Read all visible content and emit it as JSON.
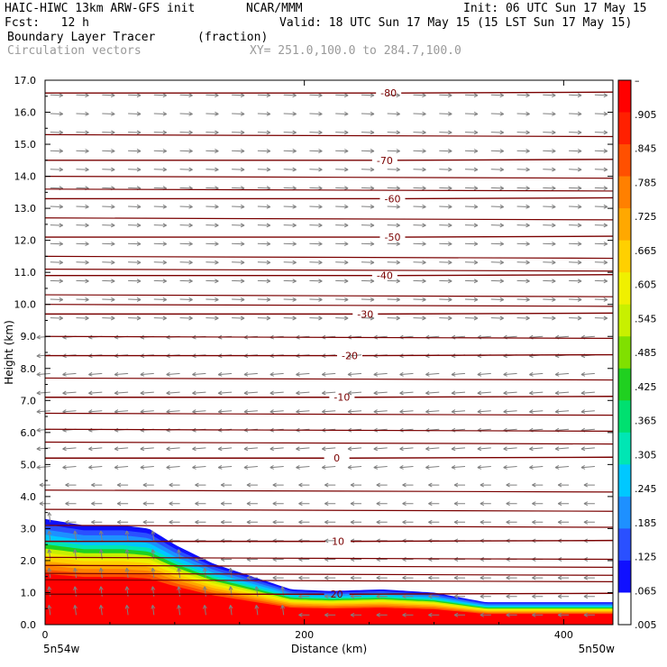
{
  "header": {
    "line1_left": "HAIC-HIWC 13km ARW-GFS init",
    "line1_mid": "NCAR/MMM",
    "line1_right": "Init: 06 UTC Sun 17 May 15",
    "line2_left": "Fcst:   12 h",
    "line2_right": "Valid: 18 UTC Sun 17 May 15 (15 LST Sun 17 May 15)",
    "line3_field": "Boundary Layer Tracer",
    "line3_units": "(fraction)",
    "line4_vectors": "Circulation vectors",
    "line4_xy": "XY= 251.0,100.0 to 284.7,100.0"
  },
  "colors": {
    "contour": "#7a0000",
    "vector": "#808080",
    "tracer_scale": [
      "#ffffff",
      "#1010ff",
      "#2a50ff",
      "#1e90ff",
      "#00c8ff",
      "#00e6b4",
      "#00e070",
      "#20d020",
      "#80e000",
      "#c8f000",
      "#f0f000",
      "#ffd000",
      "#ffa800",
      "#ff8000",
      "#ff5000",
      "#ff2000",
      "#ff0000"
    ]
  },
  "chart_data": {
    "type": "heatmap",
    "title": "Boundary Layer Tracer",
    "units": "(fraction)",
    "xlabel": "Distance (km)",
    "ylabel": "Height (km)",
    "xlim": [
      0,
      438
    ],
    "ylim": [
      0,
      17
    ],
    "x_ticks": [
      0,
      200,
      400
    ],
    "y_ticks": [
      "0.0",
      "1.0",
      "2.0",
      "3.0",
      "4.0",
      "5.0",
      "6.0",
      "7.0",
      "8.0",
      "9.0",
      "10.0",
      "11.0",
      "12.0",
      "13.0",
      "14.0",
      "15.0",
      "16.0",
      "17.0"
    ],
    "x_endpoints": [
      "5n54w",
      "5n50w"
    ],
    "colorbar_labels": [
      "–",
      ".905",
      ".845",
      ".785",
      ".725",
      ".665",
      ".605",
      ".545",
      ".485",
      ".425",
      ".365",
      ".305",
      ".245",
      ".185",
      ".125",
      ".065",
      ".005"
    ],
    "tracer_top_km": {
      "x": [
        0,
        30,
        60,
        80,
        100,
        130,
        160,
        190,
        220,
        260,
        300,
        340,
        380,
        420,
        438
      ],
      "height": [
        3.3,
        3.1,
        3.1,
        3.0,
        2.5,
        1.9,
        1.5,
        1.1,
        1.05,
        1.1,
        1.0,
        0.7,
        0.7,
        0.7,
        0.7
      ]
    },
    "temperature_contours": [
      {
        "label": "-80",
        "height": 16.6,
        "x": 265
      },
      {
        "label": "-70",
        "height": 14.5,
        "x": 262
      },
      {
        "label": "-60",
        "height": 13.3,
        "x": 268
      },
      {
        "label": "-50",
        "height": 12.1,
        "x": 268
      },
      {
        "label": "-40",
        "height": 10.9,
        "x": 262
      },
      {
        "label": "-30",
        "height": 9.7,
        "x": 247
      },
      {
        "label": "-20",
        "height": 8.4,
        "x": 235
      },
      {
        "label": "-10",
        "height": 7.1,
        "x": 229
      },
      {
        "label": "0",
        "height": 5.2,
        "x": 225
      },
      {
        "label": "10",
        "height": 2.6,
        "x": 226
      },
      {
        "label": "20",
        "height": 0.95,
        "x": 225
      }
    ]
  }
}
